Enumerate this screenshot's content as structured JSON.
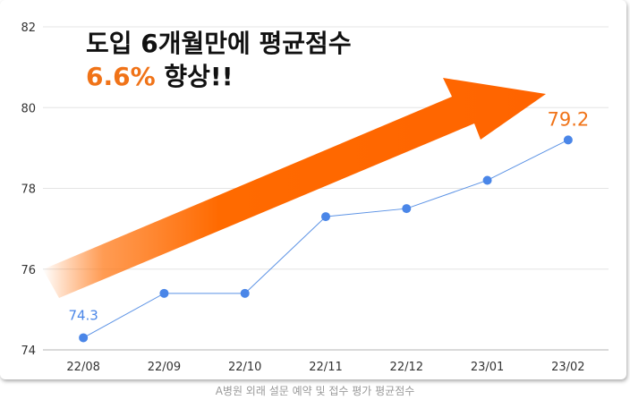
{
  "chart_data": {
    "type": "line",
    "categories": [
      "22/08",
      "22/09",
      "22/10",
      "22/11",
      "22/12",
      "23/01",
      "23/02"
    ],
    "series": [
      {
        "values": [
          74.3,
          75.4,
          75.4,
          77.3,
          77.5,
          78.2,
          79.2
        ]
      }
    ],
    "ylim": [
      74,
      82
    ],
    "yticks": [
      74,
      76,
      78,
      80,
      82
    ],
    "grid": true,
    "data_labels": {
      "first": "74.3",
      "last": "79.2"
    },
    "annotation": {
      "line1": "도입 6개월만에 평균점수",
      "line2_highlight": "6.6%",
      "line2_rest": " 향상!!"
    },
    "caption": "A병원 외래 설문 예약 및 접수 평가 평균점수"
  },
  "colors": {
    "line": "#5b92e5",
    "point": "#4a86e8",
    "last_label": "#f07318",
    "first_label": "#4a86e8",
    "arrow": "#ff6a00",
    "grid": "#e4e4e4",
    "tick_text": "#333333"
  }
}
